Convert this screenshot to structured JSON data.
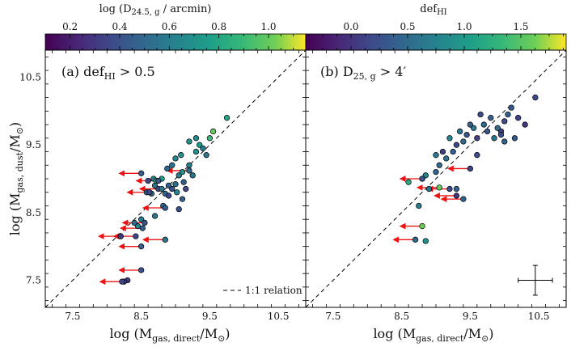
{
  "chart_data": [
    {
      "type": "scatter",
      "panel_label": "(a) def",
      "panel_label_sub": "HI",
      "panel_label_cond": " > 0.5",
      "xlabel": "log (M",
      "xlabel_sub": "gas, direct",
      "xlabel_tail": "/M",
      "xlabel_sun": "⊙",
      "xlabel_close": ")",
      "ylabel": "log (M",
      "ylabel_sub": "gas, dust",
      "ylabel_tail": "/M",
      "ylabel_sun": "⊙",
      "ylabel_close": ")",
      "xlim": [
        7.1,
        10.9
      ],
      "ylim": [
        7.1,
        10.9
      ],
      "xticks": [
        7.5,
        8.5,
        9.5,
        10.5
      ],
      "yticks": [
        7.5,
        8.5,
        9.5,
        10.5
      ],
      "xtick_labels": [
        "7.5",
        "8.5",
        "9.5",
        "10.5"
      ],
      "ytick_labels": [
        "7.5",
        "8.5",
        "9.5",
        "10.5"
      ],
      "legend": "1:1 relation",
      "colorbar": {
        "label": "log (D",
        "label_sub": "24.5, g",
        "label_tail": " / arcmin)",
        "range": [
          0.1,
          1.15
        ],
        "ticks": [
          0.2,
          0.4,
          0.6,
          0.8,
          1.0
        ],
        "tick_labels": [
          "0.2",
          "0.4",
          "0.6",
          "0.8",
          "1.0"
        ],
        "colormap": "viridis"
      },
      "points": [
        [
          8.58,
          8.8,
          0.45
        ],
        [
          8.65,
          8.78,
          0.5
        ],
        [
          8.7,
          8.9,
          0.55
        ],
        [
          8.75,
          8.85,
          0.4
        ],
        [
          8.6,
          8.97,
          0.35
        ],
        [
          8.68,
          9.0,
          0.6
        ],
        [
          8.8,
          9.0,
          0.75
        ],
        [
          8.85,
          8.78,
          0.5
        ],
        [
          8.9,
          8.9,
          0.45
        ],
        [
          8.95,
          8.85,
          0.4
        ],
        [
          9.0,
          8.92,
          0.55
        ],
        [
          9.02,
          8.8,
          0.65
        ],
        [
          9.05,
          9.05,
          0.6
        ],
        [
          9.1,
          9.1,
          0.7
        ],
        [
          9.12,
          8.95,
          0.45
        ],
        [
          9.15,
          8.85,
          0.35
        ],
        [
          8.88,
          9.15,
          0.5
        ],
        [
          8.95,
          9.2,
          0.55
        ],
        [
          9.0,
          9.3,
          0.65
        ],
        [
          9.08,
          9.35,
          0.7
        ],
        [
          9.2,
          9.2,
          0.6
        ],
        [
          9.25,
          9.05,
          0.55
        ],
        [
          9.3,
          9.4,
          0.7
        ],
        [
          9.35,
          9.5,
          0.75
        ],
        [
          9.4,
          9.45,
          0.6
        ],
        [
          9.2,
          9.55,
          0.7
        ],
        [
          9.3,
          9.6,
          0.65
        ],
        [
          9.45,
          9.35,
          0.55
        ],
        [
          9.5,
          9.6,
          0.9
        ],
        [
          9.55,
          9.7,
          1.0
        ],
        [
          9.75,
          9.9,
          0.8
        ],
        [
          8.82,
          8.6,
          0.5
        ],
        [
          8.7,
          8.45,
          0.55
        ],
        [
          9.05,
          8.55,
          0.4
        ],
        [
          8.9,
          8.75,
          0.35
        ],
        [
          9.1,
          8.7,
          0.45
        ],
        [
          8.5,
          8.4,
          0.6
        ],
        [
          8.45,
          8.3,
          0.65
        ],
        [
          8.4,
          8.35,
          0.5
        ],
        [
          8.2,
          8.15,
          0.25
        ],
        [
          8.3,
          7.5,
          0.3
        ],
        [
          8.25,
          7.48,
          0.35
        ],
        [
          8.72,
          8.97,
          0.85
        ]
      ],
      "upper_limits": [
        [
          8.5,
          9.08,
          0.45
        ],
        [
          8.75,
          8.97,
          0.4
        ],
        [
          8.8,
          8.85,
          0.55
        ],
        [
          8.62,
          8.8,
          0.35
        ],
        [
          9.2,
          9.12,
          0.5
        ],
        [
          8.85,
          8.57,
          0.45
        ],
        [
          8.55,
          8.35,
          0.4
        ],
        [
          8.52,
          8.27,
          0.45
        ],
        [
          8.42,
          8.15,
          0.35
        ],
        [
          8.2,
          8.15,
          0.3
        ],
        [
          8.5,
          8.0,
          0.45
        ],
        [
          8.85,
          8.1,
          0.55
        ],
        [
          8.5,
          7.65,
          0.4
        ],
        [
          8.22,
          7.48,
          0.35
        ]
      ]
    },
    {
      "type": "scatter",
      "panel_label": "(b) D",
      "panel_label_sub": "25, g",
      "panel_label_cond": " > 4′",
      "xlabel": "log (M",
      "xlabel_sub": "gas, direct",
      "xlabel_tail": "/M",
      "xlabel_sun": "⊙",
      "xlabel_close": ")",
      "xlim": [
        7.1,
        10.9
      ],
      "ylim": [
        7.1,
        10.9
      ],
      "xticks": [
        7.5,
        8.5,
        9.5,
        10.5
      ],
      "xtick_labels": [
        "7.5",
        "8.5",
        "9.5",
        "10.5"
      ],
      "colorbar": {
        "label": "def",
        "label_sub": "HI",
        "label_tail": "",
        "range": [
          -0.4,
          1.9
        ],
        "ticks": [
          0.0,
          0.5,
          1.0,
          1.5
        ],
        "tick_labels": [
          "0.0",
          "0.5",
          "1.0",
          "1.5"
        ],
        "colormap": "viridis"
      },
      "errorbar": {
        "x": 10.45,
        "y": 7.5,
        "xerr": 0.25,
        "yerr": 0.22
      },
      "points": [
        [
          10.45,
          10.2,
          0.2
        ],
        [
          10.3,
          9.8,
          0.0
        ],
        [
          10.2,
          9.9,
          0.1
        ],
        [
          10.1,
          10.05,
          0.3
        ],
        [
          10.05,
          9.95,
          0.4
        ],
        [
          10.0,
          9.85,
          0.2
        ],
        [
          9.95,
          9.7,
          0.1
        ],
        [
          9.9,
          9.75,
          0.5
        ],
        [
          9.85,
          9.6,
          0.6
        ],
        [
          9.8,
          9.9,
          0.4
        ],
        [
          9.75,
          9.7,
          0.3
        ],
        [
          9.7,
          9.8,
          0.5
        ],
        [
          9.65,
          9.95,
          0.2
        ],
        [
          9.6,
          9.6,
          0.1
        ],
        [
          9.55,
          9.75,
          0.7
        ],
        [
          9.5,
          9.8,
          0.4
        ],
        [
          9.45,
          9.65,
          0.3
        ],
        [
          9.4,
          9.55,
          0.5
        ],
        [
          9.35,
          9.7,
          0.6
        ],
        [
          9.3,
          9.5,
          0.2
        ],
        [
          9.25,
          9.4,
          0.4
        ],
        [
          9.2,
          9.6,
          0.8
        ],
        [
          9.15,
          9.3,
          0.6
        ],
        [
          9.1,
          9.4,
          0.1
        ],
        [
          9.05,
          9.2,
          0.5
        ],
        [
          9.0,
          9.35,
          0.7
        ],
        [
          9.0,
          9.1,
          0.4
        ],
        [
          8.85,
          9.05,
          0.8
        ],
        [
          8.8,
          9.0,
          0.9
        ],
        [
          9.95,
          9.65,
          0.2
        ],
        [
          10.15,
          9.6,
          0.3
        ],
        [
          9.6,
          9.35,
          0.2
        ],
        [
          10.0,
          9.55,
          0.4
        ],
        [
          8.75,
          8.6,
          0.7
        ],
        [
          8.6,
          8.95,
          1.2
        ],
        [
          8.9,
          8.85,
          0.6
        ],
        [
          9.3,
          8.85,
          0.4
        ],
        [
          8.85,
          8.08,
          0.9
        ]
      ],
      "upper_limits": [
        [
          9.5,
          9.15,
          0.1
        ],
        [
          8.8,
          9.0,
          0.3
        ],
        [
          9.2,
          8.85,
          0.2
        ],
        [
          9.3,
          8.75,
          0.0
        ],
        [
          9.4,
          8.7,
          0.4
        ],
        [
          8.8,
          8.3,
          1.6
        ],
        [
          9.05,
          8.87,
          1.55
        ],
        [
          8.7,
          8.1,
          0.5
        ]
      ]
    }
  ]
}
